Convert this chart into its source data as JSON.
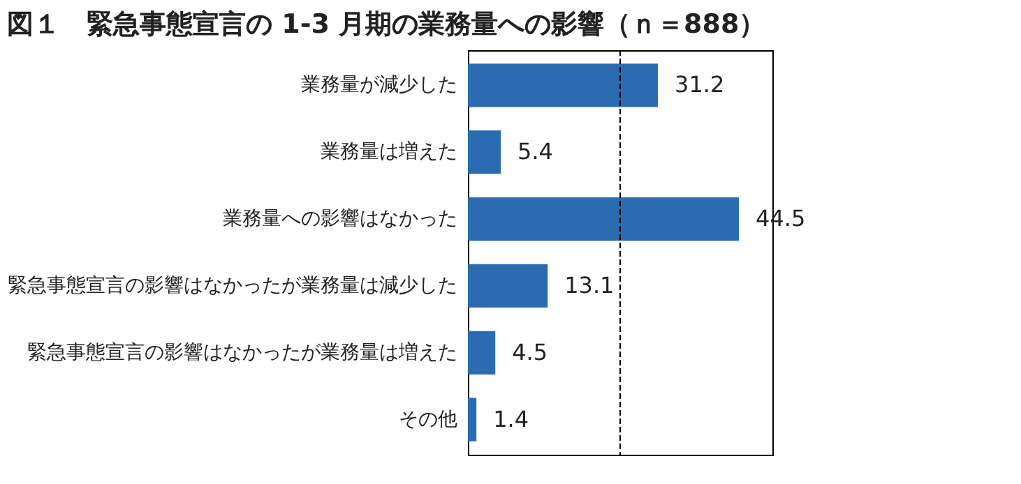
{
  "chart_data": {
    "type": "bar",
    "orientation": "horizontal",
    "title": "図１　緊急事態宣言の 1-3 月期の業務量への影響（ｎ＝888）",
    "categories": [
      "業務量が減少した",
      "業務量は増えた",
      "業務量への影響はなかった",
      "緊急事態宣言の影響はなかったが業務量は減少した",
      "緊急事態宣言の影響はなかったが業務量は増えた",
      "その他"
    ],
    "values": [
      31.2,
      5.4,
      44.5,
      13.1,
      4.5,
      1.4
    ],
    "color": "#2b6cb0",
    "xlim": [
      0,
      50
    ],
    "ref_lines": [
      {
        "axis": "x",
        "value": 25,
        "line_style": "dashed"
      }
    ],
    "tick_labels": "y",
    "data_labels": true
  }
}
